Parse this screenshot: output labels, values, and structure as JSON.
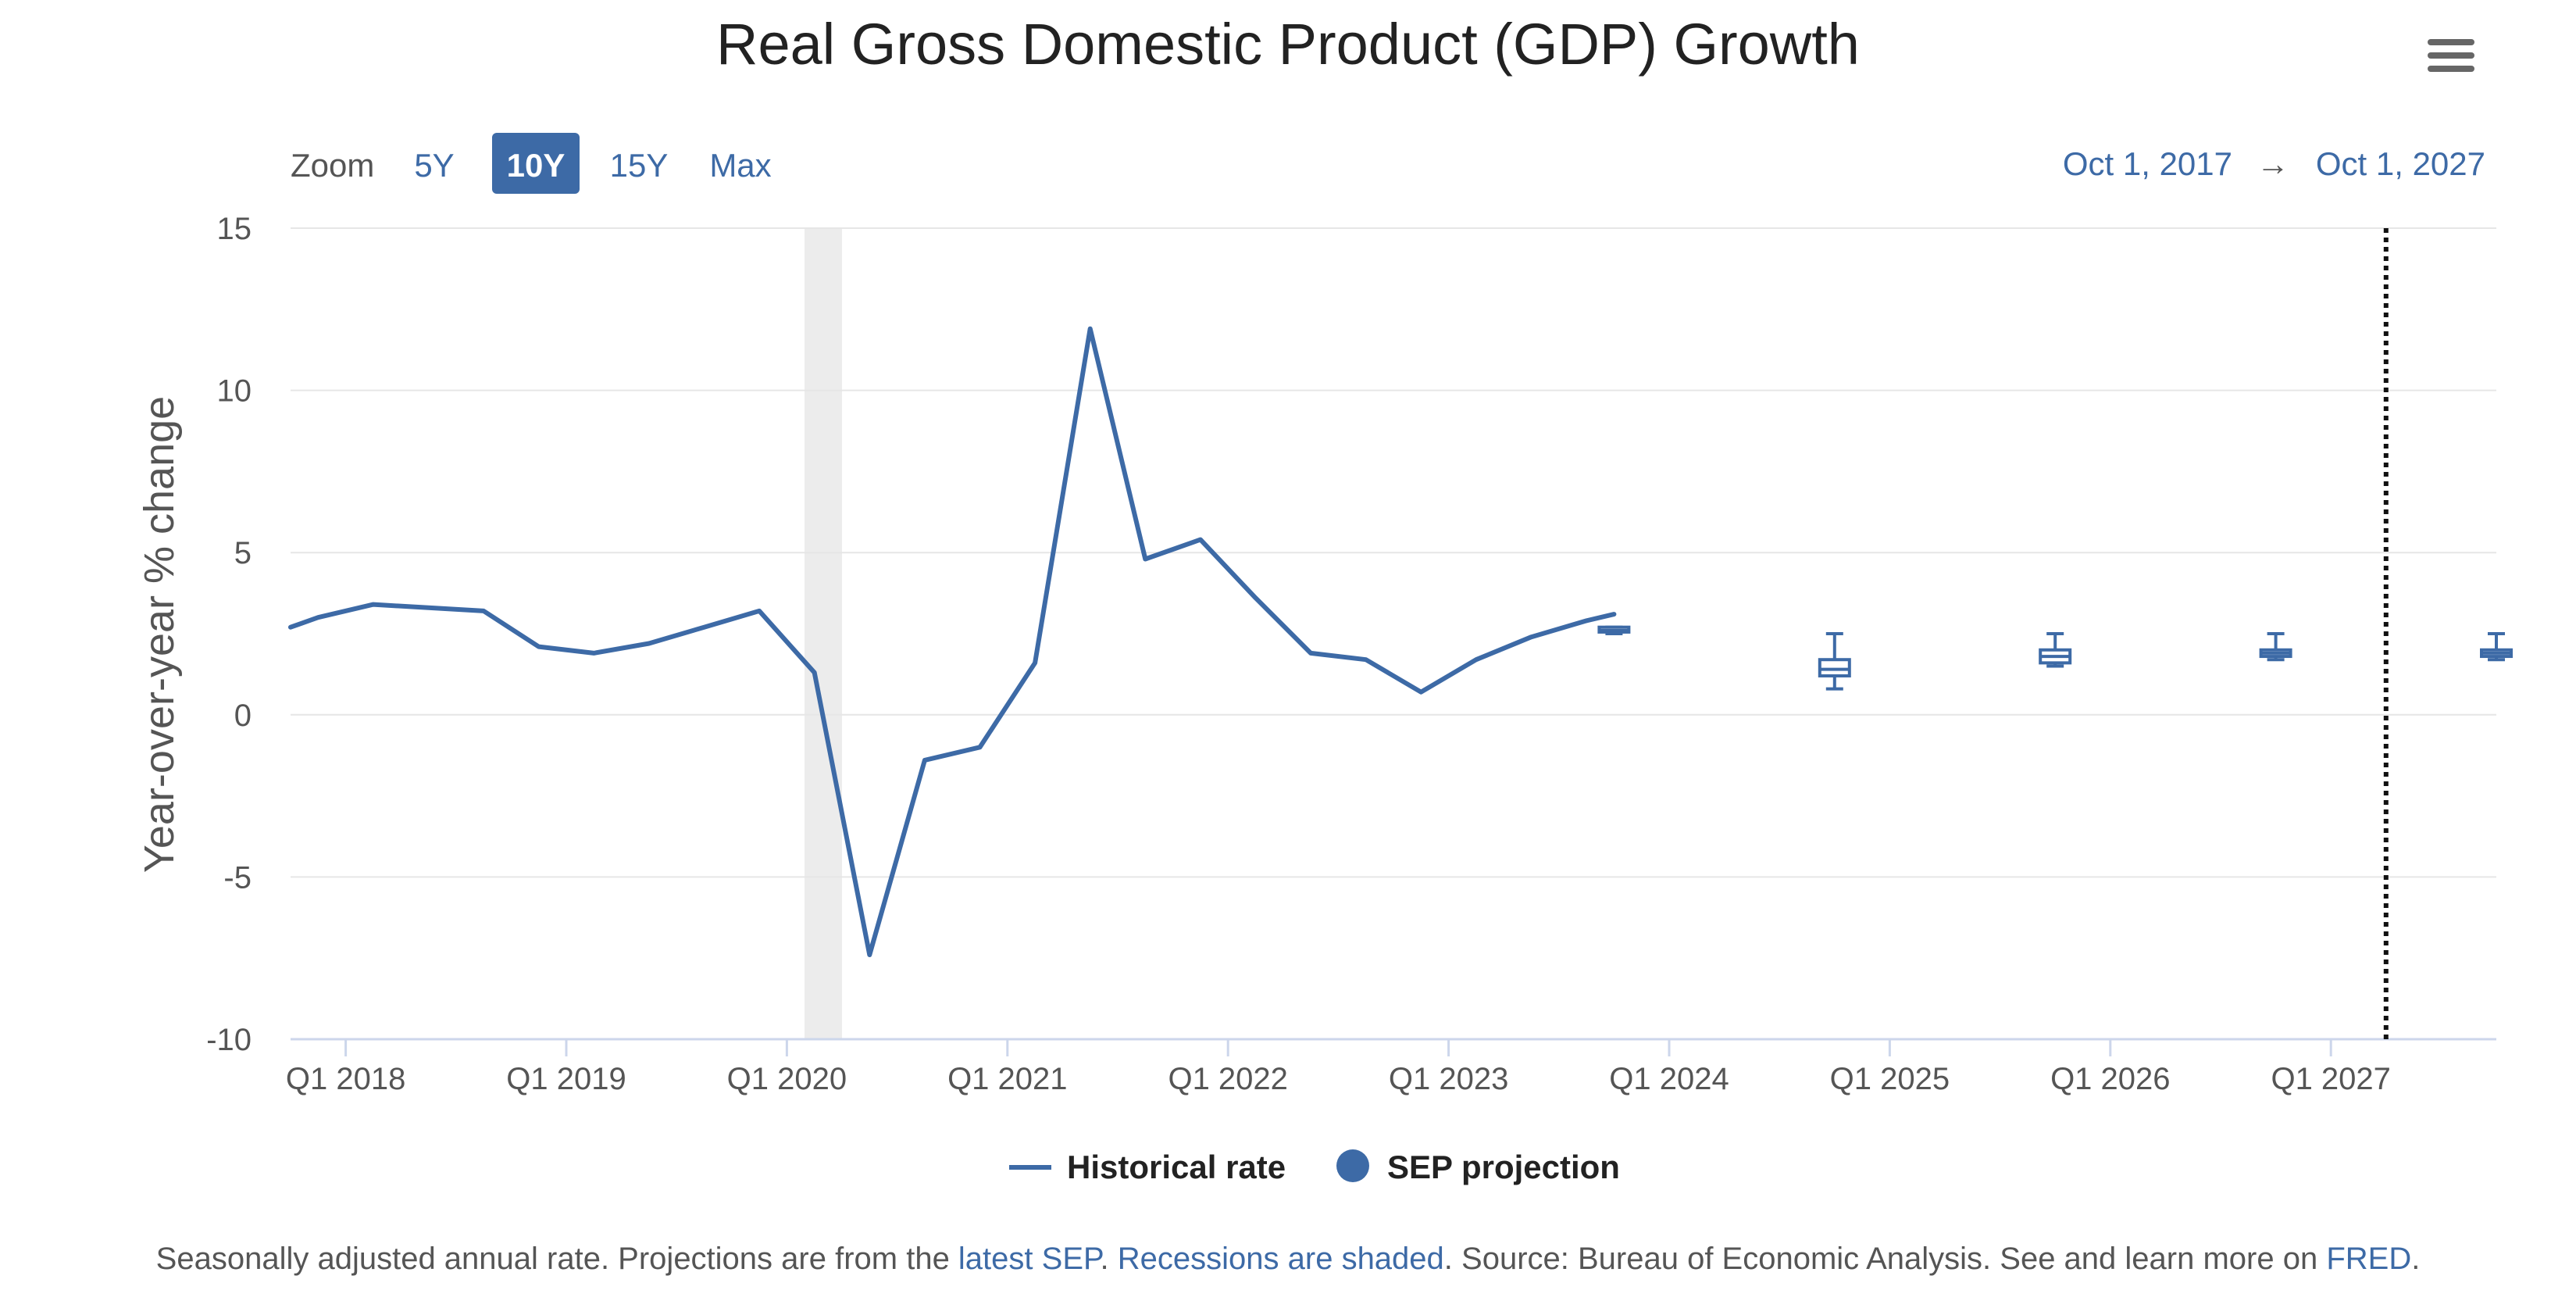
{
  "title": "Real Gross Domestic Product (GDP) Growth",
  "menu_icon": "hamburger-menu-icon",
  "zoom": {
    "label": "Zoom",
    "buttons": [
      "5Y",
      "10Y",
      "15Y",
      "Max"
    ],
    "active": "10Y"
  },
  "range": {
    "from": "Oct 1, 2017",
    "arrow": "→",
    "to": "Oct 1, 2027"
  },
  "legend": {
    "historical": "Historical rate",
    "projection": "SEP projection"
  },
  "footer": {
    "text1": "Seasonally adjusted annual rate. Projections are from the ",
    "link1": "latest SEP",
    "text2": ". ",
    "link2": "Recessions are shaded",
    "text3": ". Source: Bureau of Economic Analysis. See and learn more on ",
    "link3": "FRED",
    "text4": "."
  },
  "colors": {
    "series": "#3d6aa6",
    "grid": "#e6e6e6",
    "axis": "#ccd6eb",
    "recession": "#ececec",
    "active_button": "#3d6aa6"
  },
  "chart_data": {
    "type": "line",
    "title": "Real Gross Domestic Product (GDP) Growth",
    "xlabel": "",
    "ylabel": "Year-over-year % change",
    "xlim": [
      2017.75,
      2027.75
    ],
    "ylim": [
      -10,
      15
    ],
    "yticks": [
      15,
      10,
      5,
      0,
      -5,
      -10
    ],
    "xticks": [
      {
        "label": "Q1 2018",
        "x": 2018.0
      },
      {
        "label": "Q1 2019",
        "x": 2019.0
      },
      {
        "label": "Q1 2020",
        "x": 2020.0
      },
      {
        "label": "Q1 2021",
        "x": 2021.0
      },
      {
        "label": "Q1 2022",
        "x": 2022.0
      },
      {
        "label": "Q1 2023",
        "x": 2023.0
      },
      {
        "label": "Q1 2024",
        "x": 2024.0
      },
      {
        "label": "Q1 2025",
        "x": 2025.0
      },
      {
        "label": "Q1 2026",
        "x": 2026.0
      },
      {
        "label": "Q1 2027",
        "x": 2027.0
      }
    ],
    "recession": [
      2020.08,
      2020.25
    ],
    "vertical_marker": 2027.25,
    "series": [
      {
        "name": "Historical rate",
        "x": [
          2017.75,
          2017.875,
          2018.125,
          2018.375,
          2018.625,
          2018.875,
          2019.125,
          2019.375,
          2019.625,
          2019.875,
          2020.125,
          2020.375,
          2020.625,
          2020.875,
          2021.125,
          2021.375,
          2021.625,
          2021.875,
          2022.125,
          2022.375,
          2022.625,
          2022.875,
          2023.125,
          2023.375,
          2023.625,
          2023.75
        ],
        "values": [
          2.7,
          3.0,
          3.4,
          3.3,
          3.2,
          2.1,
          1.9,
          2.2,
          2.7,
          3.2,
          1.3,
          -7.4,
          -1.4,
          -1.0,
          1.6,
          11.9,
          4.8,
          5.4,
          3.6,
          1.9,
          1.7,
          0.7,
          1.7,
          2.4,
          2.9,
          3.1
        ]
      }
    ],
    "projections": {
      "name": "SEP projection",
      "boxes": [
        {
          "x": 2023.75,
          "low": 2.5,
          "q1": 2.55,
          "median": 2.6,
          "q3": 2.7,
          "high": 2.7
        },
        {
          "x": 2024.75,
          "low": 0.8,
          "q1": 1.2,
          "median": 1.4,
          "q3": 1.7,
          "high": 2.5
        },
        {
          "x": 2025.75,
          "low": 1.5,
          "q1": 1.6,
          "median": 1.8,
          "q3": 2.0,
          "high": 2.5
        },
        {
          "x": 2026.75,
          "low": 1.7,
          "q1": 1.8,
          "median": 1.9,
          "q3": 2.0,
          "high": 2.5
        },
        {
          "x": 2027.75,
          "low": 1.7,
          "q1": 1.8,
          "median": 1.9,
          "q3": 2.0,
          "high": 2.5
        }
      ]
    }
  }
}
